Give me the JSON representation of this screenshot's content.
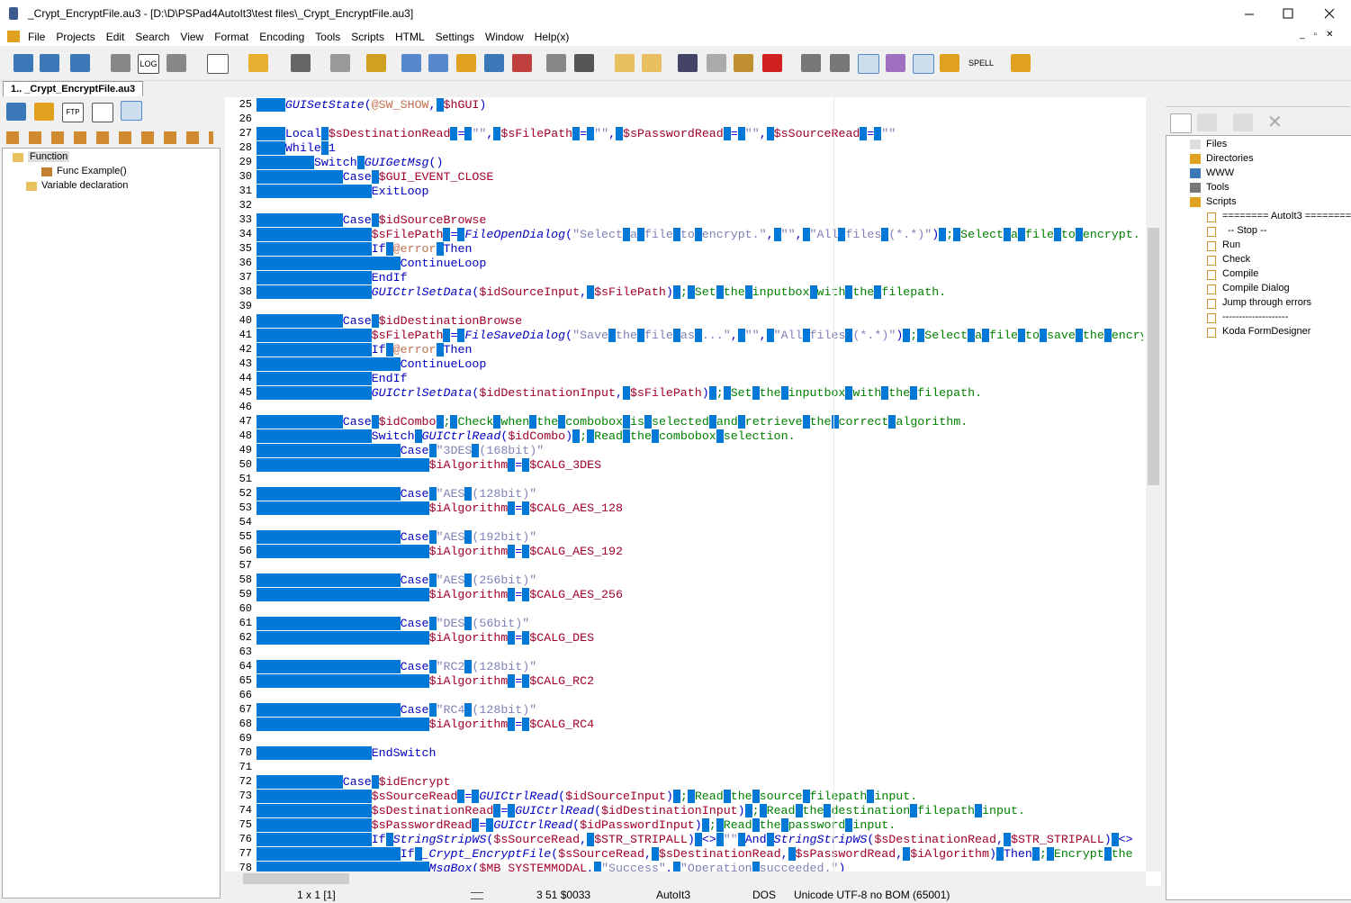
{
  "window": {
    "title": "_Crypt_EncryptFile.au3 - [D:\\D\\PSPad4AutoIt3\\test files\\_Crypt_EncryptFile.au3]"
  },
  "menu": [
    "File",
    "Projects",
    "Edit",
    "Search",
    "View",
    "Format",
    "Encoding",
    "Tools",
    "Scripts",
    "HTML",
    "Settings",
    "Window",
    "Help(x)"
  ],
  "toolbar_labels": [
    "LOG",
    "SPELL"
  ],
  "tab": "1.. _Crypt_EncryptFile.au3",
  "left_panel": {
    "icon_label": "FTP",
    "tree": [
      "Function",
      "Func Example()",
      "Variable declaration"
    ]
  },
  "lines": [
    {
      "n": 25,
      "text": "\tGUISetState(@SW_SHOW, $hGUI)"
    },
    {
      "n": 26
    },
    {
      "n": 27,
      "text": "\tLocal $sDestinationRead = \"\", $sFilePath = \"\", $sPasswordRead = \"\", $sSourceRead = \"\""
    },
    {
      "n": 28,
      "text": "\tWhile 1"
    },
    {
      "n": 29,
      "text": "\t\tSwitch GUIGetMsg()"
    },
    {
      "n": 30,
      "text": "\t\t\tCase $GUI_EVENT_CLOSE"
    },
    {
      "n": 31,
      "text": "\t\t\t\tExitLoop"
    },
    {
      "n": 32
    },
    {
      "n": 33,
      "text": "\t\t\tCase $idSourceBrowse"
    },
    {
      "n": 34,
      "text": "\t\t\t\t$sFilePath = FileOpenDialog(\"Select a file to encrypt.\", \"\", \"All files (*.*)\") ; Select a file to encrypt."
    },
    {
      "n": 35,
      "text": "\t\t\t\tIf @error Then"
    },
    {
      "n": 36,
      "text": "\t\t\t\t\tContinueLoop"
    },
    {
      "n": 37,
      "text": "\t\t\t\tEndIf"
    },
    {
      "n": 38,
      "text": "\t\t\t\tGUICtrlSetData($idSourceInput, $sFilePath) ; Set the inputbox with the filepath."
    },
    {
      "n": 39
    },
    {
      "n": 40,
      "text": "\t\t\tCase $idDestinationBrowse"
    },
    {
      "n": 41,
      "text": "\t\t\t\t$sFilePath = FileSaveDialog(\"Save the file as ...\", \"\", \"All files (*.*)\") ; Select a file to save the encry"
    },
    {
      "n": 42,
      "text": "\t\t\t\tIf @error Then"
    },
    {
      "n": 43,
      "text": "\t\t\t\t\tContinueLoop"
    },
    {
      "n": 44,
      "text": "\t\t\t\tEndIf"
    },
    {
      "n": 45,
      "text": "\t\t\t\tGUICtrlSetData($idDestinationInput, $sFilePath) ; Set the inputbox with the filepath."
    },
    {
      "n": 46
    },
    {
      "n": 47,
      "text": "\t\t\tCase $idCombo ; Check when the combobox is selected and retrieve the correct algorithm."
    },
    {
      "n": 48,
      "text": "\t\t\t\tSwitch GUICtrlRead($idCombo) ; Read the combobox selection."
    },
    {
      "n": 49,
      "text": "\t\t\t\t\tCase \"3DES (168bit)\""
    },
    {
      "n": 50,
      "text": "\t\t\t\t\t\t$iAlgorithm = $CALG_3DES"
    },
    {
      "n": 51
    },
    {
      "n": 52,
      "text": "\t\t\t\t\tCase \"AES (128bit)\""
    },
    {
      "n": 53,
      "text": "\t\t\t\t\t\t$iAlgorithm = $CALG_AES_128"
    },
    {
      "n": 54
    },
    {
      "n": 55,
      "text": "\t\t\t\t\tCase \"AES (192bit)\""
    },
    {
      "n": 56,
      "text": "\t\t\t\t\t\t$iAlgorithm = $CALG_AES_192"
    },
    {
      "n": 57
    },
    {
      "n": 58,
      "text": "\t\t\t\t\tCase \"AES (256bit)\""
    },
    {
      "n": 59,
      "text": "\t\t\t\t\t\t$iAlgorithm = $CALG_AES_256"
    },
    {
      "n": 60
    },
    {
      "n": 61,
      "text": "\t\t\t\t\tCase \"DES (56bit)\""
    },
    {
      "n": 62,
      "text": "\t\t\t\t\t\t$iAlgorithm = $CALG_DES"
    },
    {
      "n": 63
    },
    {
      "n": 64,
      "text": "\t\t\t\t\tCase \"RC2 (128bit)\""
    },
    {
      "n": 65,
      "text": "\t\t\t\t\t\t$iAlgorithm = $CALG_RC2"
    },
    {
      "n": 66
    },
    {
      "n": 67,
      "text": "\t\t\t\t\tCase \"RC4 (128bit)\""
    },
    {
      "n": 68,
      "text": "\t\t\t\t\t\t$iAlgorithm = $CALG_RC4"
    },
    {
      "n": 69
    },
    {
      "n": 70,
      "text": "\t\t\t\tEndSwitch"
    },
    {
      "n": 71
    },
    {
      "n": 72,
      "text": "\t\t\tCase $idEncrypt"
    },
    {
      "n": 73,
      "text": "\t\t\t\t$sSourceRead = GUICtrlRead($idSourceInput) ; Read the source filepath input."
    },
    {
      "n": 74,
      "text": "\t\t\t\t$sDestinationRead = GUICtrlRead($idDestinationInput) ; Read the destination filepath input."
    },
    {
      "n": 75,
      "text": "\t\t\t\t$sPasswordRead = GUICtrlRead($idPasswordInput) ; Read the password input."
    },
    {
      "n": 76,
      "text": "\t\t\t\tIf StringStripWS($sSourceRead, $STR_STRIPALL) <> \"\" And StringStripWS($sDestinationRead, $STR_STRIPALL) <>"
    },
    {
      "n": 77,
      "text": "\t\t\t\t\tIf _Crypt_EncryptFile($sSourceRead, $sDestinationRead, $sPasswordRead, $iAlgorithm) Then ; Encrypt the"
    },
    {
      "n": 78,
      "text": "\t\t\t\t\t\tMsgBox($MB_SYSTEMMODAL, \"Success\", \"Operation succeeded.\")"
    }
  ],
  "right_panel": {
    "tree": [
      "Files",
      "Directories",
      "WWW",
      "Tools",
      "Scripts"
    ],
    "scripts": [
      "======== AutoIt3 ========",
      "-- Stop --",
      "Run",
      "Check",
      "Compile",
      "Compile Dialog",
      "Jump through errors",
      "--------------------",
      "Koda FormDesigner"
    ]
  },
  "status": {
    "position": "1 x 1  [1]",
    "cursor": "3   51  $0033",
    "syntax": "AutoIt3",
    "line_end": "DOS",
    "encoding": "Unicode UTF-8 no BOM (65001)"
  }
}
